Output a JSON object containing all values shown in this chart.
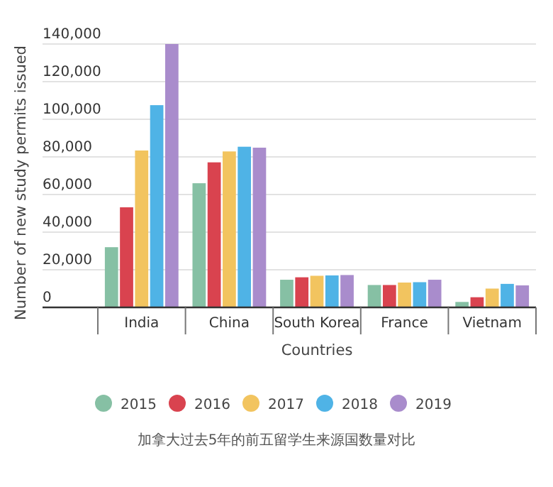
{
  "chart_data": {
    "type": "bar",
    "xlabel": "Countries",
    "ylabel": "Number of new study permits issued",
    "categories": [
      "India",
      "China",
      "South Korea",
      "France",
      "Vietnam"
    ],
    "series": [
      {
        "name": "2015",
        "color": "#86c0a4",
        "values": [
          32000,
          66000,
          14700,
          11900,
          2900
        ]
      },
      {
        "name": "2016",
        "color": "#d9434f",
        "values": [
          53200,
          77100,
          16000,
          11900,
          5400
        ]
      },
      {
        "name": "2017",
        "color": "#f2c45f",
        "values": [
          83400,
          82900,
          16800,
          13200,
          10000
        ]
      },
      {
        "name": "2018",
        "color": "#4fb3e6",
        "values": [
          107500,
          85400,
          17000,
          13400,
          12500
        ]
      },
      {
        "name": "2019",
        "color": "#a98ccc",
        "values": [
          140000,
          84900,
          17200,
          14700,
          11700
        ]
      }
    ],
    "ylim": [
      0,
      140000
    ],
    "yticks": [
      {
        "value": 0,
        "label": "0"
      },
      {
        "value": 20000,
        "label": "20,000"
      },
      {
        "value": 40000,
        "label": "40,000"
      },
      {
        "value": 60000,
        "label": "60,000"
      },
      {
        "value": 80000,
        "label": "80,000"
      },
      {
        "value": 100000,
        "label": "100,000"
      },
      {
        "value": 120000,
        "label": "120,000"
      },
      {
        "value": 140000,
        "label": "140,000"
      }
    ],
    "grid": "y",
    "legend": "bottom",
    "annotations": [
      "加拿大过去5年的前五留学生来源国数量对比"
    ]
  }
}
